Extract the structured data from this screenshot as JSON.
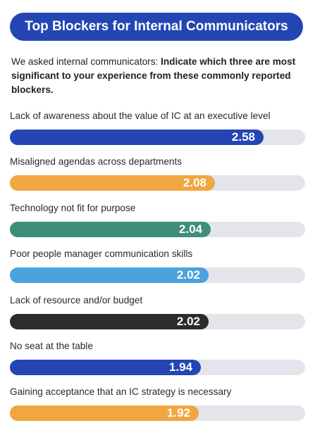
{
  "header": {
    "title": "Top Blockers for Internal Communicators",
    "intro_plain": "We asked internal communicators: ",
    "intro_bold": "Indicate which three are most significant to your experience from these commonly reported blockers."
  },
  "chart_data": {
    "type": "bar",
    "orientation": "horizontal",
    "title": "Top Blockers for Internal Communicators",
    "categories": [
      "Lack of awareness about the value of IC at an executive level",
      "Misaligned agendas across departments",
      "Technology not fit for purpose",
      "Poor people manager communication skills",
      "Lack of resource and/or budget",
      "No seat at the table",
      "Gaining acceptance that an IC strategy is necessary"
    ],
    "values": [
      2.58,
      2.08,
      2.04,
      2.02,
      2.02,
      1.94,
      1.92
    ],
    "value_labels": [
      "2.58",
      "2.08",
      "2.04",
      "2.02",
      "2.02",
      "1.94",
      "1.92"
    ],
    "colors": [
      "#2446b4",
      "#f0a741",
      "#3d8f7a",
      "#4aa3de",
      "#2c2c2c",
      "#2446b4",
      "#f0a741"
    ],
    "track_color": "#e4e5ea",
    "data_labels": true,
    "grid": false,
    "legend": "none"
  }
}
